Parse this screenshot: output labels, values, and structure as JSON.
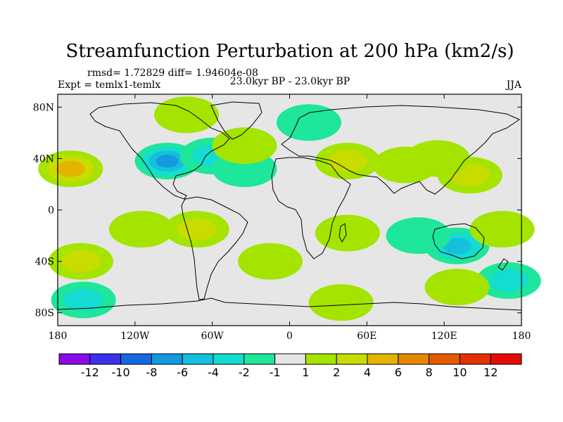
{
  "chart_data": {
    "type": "contour-map",
    "title": "Streamfunction Perturbation at 200 hPa (km2/s)",
    "stats_line": "rmsd= 1.72829 diff= 1.94604e-08",
    "experiment": "Expt = temlx1-temlx",
    "period": "23.0kyr BP - 23.0kyr BP",
    "season": "JJA",
    "projection": "cylindrical equidistant",
    "lon_range": [
      -180,
      180
    ],
    "lat_range": [
      -90,
      90
    ],
    "x_ticks": [
      {
        "lon": -180,
        "label": "180"
      },
      {
        "lon": -120,
        "label": "120W"
      },
      {
        "lon": -60,
        "label": "60W"
      },
      {
        "lon": 0,
        "label": "0"
      },
      {
        "lon": 60,
        "label": "60E"
      },
      {
        "lon": 120,
        "label": "120E"
      },
      {
        "lon": 180,
        "label": "180"
      }
    ],
    "y_ticks": [
      {
        "lat": 80,
        "label": "80N"
      },
      {
        "lat": 40,
        "label": "40N"
      },
      {
        "lat": 0,
        "label": "0"
      },
      {
        "lat": -40,
        "label": "40S"
      },
      {
        "lat": -80,
        "label": "80S"
      }
    ],
    "contour_levels": [
      -12,
      -10,
      -8,
      -6,
      -4,
      -2,
      -1,
      1,
      2,
      4,
      6,
      8,
      10,
      12
    ],
    "colorbar_labels": [
      "-12",
      "-10",
      "-8",
      "-6",
      "-4",
      "-2",
      "-1",
      "1",
      "2",
      "4",
      "6",
      "8",
      "10",
      "12"
    ],
    "colorbar_colors": [
      "#8a0ae8",
      "#3c30e8",
      "#1468e0",
      "#1498e0",
      "#14c0dc",
      "#14dcd0",
      "#1ee69a",
      "#e6e6e6",
      "#a4e400",
      "#c8dc00",
      "#e4b400",
      "#e48800",
      "#e45c00",
      "#e43000",
      "#e40c00"
    ],
    "field_centers": [
      {
        "lon": -170,
        "lat": 32,
        "value": 6
      },
      {
        "lon": -162,
        "lat": -40,
        "value": 4
      },
      {
        "lon": -160,
        "lat": -70,
        "value": -4
      },
      {
        "lon": -95,
        "lat": 38,
        "value": -7
      },
      {
        "lon": -60,
        "lat": 42,
        "value": -4
      },
      {
        "lon": -35,
        "lat": 32,
        "value": -2
      },
      {
        "lon": -80,
        "lat": 74,
        "value": 2
      },
      {
        "lon": -115,
        "lat": -15,
        "value": 2
      },
      {
        "lon": -72,
        "lat": -15,
        "value": 4
      },
      {
        "lon": -15,
        "lat": -40,
        "value": 2
      },
      {
        "lon": 15,
        "lat": 68,
        "value": -2
      },
      {
        "lon": -35,
        "lat": 50,
        "value": 2
      },
      {
        "lon": 45,
        "lat": 38,
        "value": 4
      },
      {
        "lon": 90,
        "lat": 35,
        "value": 2
      },
      {
        "lon": 140,
        "lat": 27,
        "value": 4
      },
      {
        "lon": 115,
        "lat": 40,
        "value": 2
      },
      {
        "lon": 45,
        "lat": -18,
        "value": 2
      },
      {
        "lon": 130,
        "lat": -28,
        "value": -6
      },
      {
        "lon": 100,
        "lat": -20,
        "value": -2
      },
      {
        "lon": 165,
        "lat": -15,
        "value": 2
      },
      {
        "lon": 170,
        "lat": -55,
        "value": -4
      },
      {
        "lon": 40,
        "lat": -72,
        "value": 2
      },
      {
        "lon": 130,
        "lat": -60,
        "value": 1
      }
    ]
  }
}
